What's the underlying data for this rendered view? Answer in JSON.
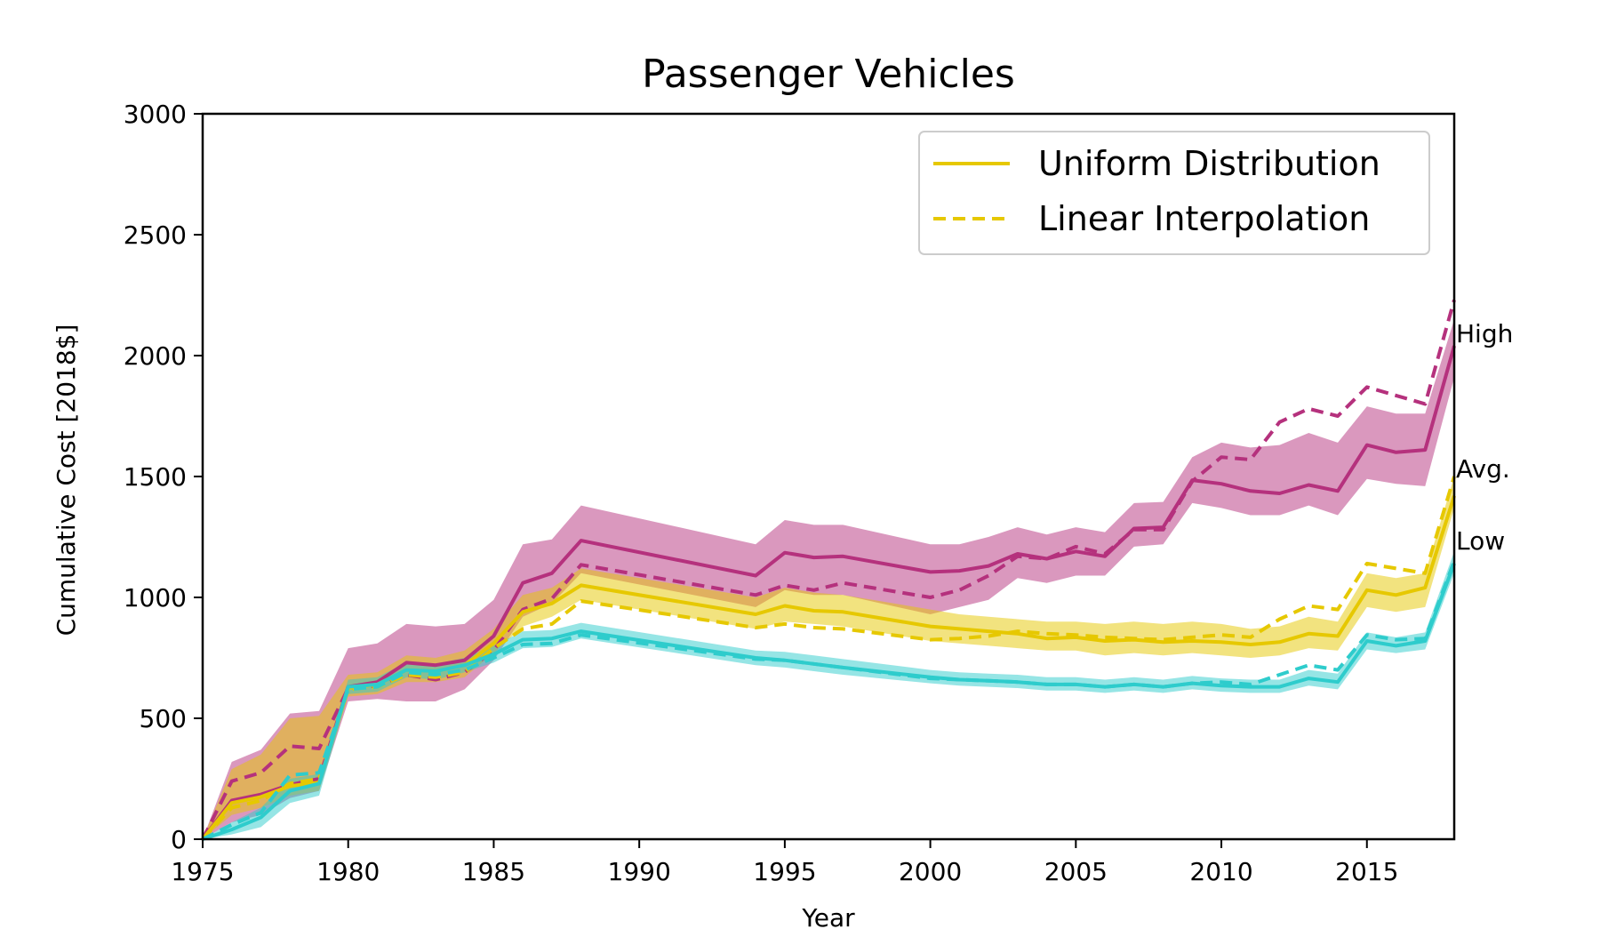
{
  "chart_data": {
    "type": "line",
    "title": "Passenger Vehicles",
    "xlabel": "Year",
    "ylabel": "Cumulative Cost [2018$]",
    "xlim": [
      1975,
      2018
    ],
    "ylim": [
      0,
      3000
    ],
    "xticks": [
      1975,
      1980,
      1985,
      1990,
      1995,
      2000,
      2005,
      2010,
      2015
    ],
    "yticks": [
      0,
      500,
      1000,
      1500,
      2000,
      2500,
      3000
    ],
    "grid": false,
    "legend_position": "top-right",
    "legend": [
      {
        "label": "Uniform Distribution",
        "style": "solid",
        "color": "#e6c800"
      },
      {
        "label": "Linear Interpolation",
        "style": "dashed",
        "color": "#e6c800"
      }
    ],
    "colors": {
      "high": "#b5317d",
      "avg": "#e6c800",
      "low": "#2ecccc"
    },
    "end_labels": {
      "high": "High",
      "avg": "Avg.",
      "low": "Low"
    },
    "series": [
      {
        "group": "high",
        "style": "solid",
        "x": [
          1975,
          1976,
          1977,
          1978,
          1979,
          1980,
          1981,
          1982,
          1983,
          1984,
          1985,
          1986,
          1987,
          1988,
          1994,
          1995,
          1996,
          1997,
          2000,
          2001,
          2002,
          2003,
          2004,
          2005,
          2006,
          2007,
          2008,
          2009,
          2010,
          2011,
          2012,
          2013,
          2014,
          2015,
          2016,
          2017,
          2018
        ],
        "y": [
          0,
          160,
          185,
          225,
          250,
          630,
          650,
          730,
          720,
          740,
          840,
          1060,
          1100,
          1235,
          1090,
          1185,
          1165,
          1170,
          1105,
          1110,
          1130,
          1180,
          1160,
          1190,
          1170,
          1285,
          1290,
          1485,
          1470,
          1440,
          1430,
          1465,
          1440,
          1630,
          1600,
          1610,
          2040
        ]
      },
      {
        "group": "high",
        "style": "dashed",
        "x": [
          1975,
          1976,
          1977,
          1978,
          1979,
          1980,
          1981,
          1982,
          1983,
          1984,
          1985,
          1986,
          1987,
          1988,
          1994,
          1995,
          1996,
          1997,
          2000,
          2001,
          2002,
          2003,
          2004,
          2005,
          2006,
          2007,
          2008,
          2009,
          2010,
          2011,
          2012,
          2013,
          2014,
          2015,
          2016,
          2017,
          2018
        ],
        "y": [
          0,
          240,
          275,
          385,
          375,
          625,
          635,
          680,
          660,
          690,
          780,
          950,
          995,
          1135,
          1010,
          1050,
          1030,
          1060,
          1000,
          1030,
          1090,
          1170,
          1160,
          1210,
          1180,
          1280,
          1280,
          1480,
          1580,
          1570,
          1725,
          1780,
          1750,
          1870,
          1835,
          1800,
          2230
        ]
      },
      {
        "group": "avg",
        "style": "solid",
        "x": [
          1975,
          1976,
          1977,
          1978,
          1979,
          1980,
          1981,
          1982,
          1983,
          1984,
          1985,
          1986,
          1987,
          1988,
          1994,
          1995,
          1996,
          1997,
          2000,
          2001,
          2002,
          2003,
          2004,
          2005,
          2006,
          2007,
          2008,
          2009,
          2010,
          2011,
          2012,
          2013,
          2014,
          2015,
          2016,
          2017,
          2018
        ],
        "y": [
          0,
          150,
          175,
          220,
          235,
          625,
          640,
          700,
          695,
          720,
          810,
          940,
          975,
          1050,
          930,
          965,
          945,
          940,
          880,
          870,
          860,
          850,
          830,
          835,
          820,
          825,
          815,
          820,
          815,
          805,
          815,
          850,
          840,
          1030,
          1010,
          1040,
          1420
        ]
      },
      {
        "group": "avg",
        "style": "dashed",
        "x": [
          1975,
          1976,
          1977,
          1978,
          1979,
          1980,
          1981,
          1982,
          1983,
          1984,
          1985,
          1986,
          1987,
          1988,
          1994,
          1995,
          1996,
          1997,
          2000,
          2001,
          2002,
          2003,
          2004,
          2005,
          2006,
          2007,
          2008,
          2009,
          2010,
          2011,
          2012,
          2013,
          2014,
          2015,
          2016,
          2017,
          2018
        ],
        "y": [
          0,
          130,
          160,
          230,
          250,
          620,
          630,
          680,
          670,
          690,
          790,
          870,
          890,
          985,
          875,
          890,
          875,
          870,
          825,
          830,
          840,
          860,
          850,
          845,
          835,
          830,
          825,
          835,
          845,
          835,
          910,
          965,
          950,
          1140,
          1120,
          1100,
          1500
        ]
      },
      {
        "group": "low",
        "style": "solid",
        "x": [
          1975,
          1976,
          1977,
          1978,
          1979,
          1980,
          1981,
          1982,
          1983,
          1984,
          1985,
          1986,
          1987,
          1988,
          1994,
          1995,
          1996,
          1997,
          2000,
          2001,
          2002,
          2003,
          2004,
          2005,
          2006,
          2007,
          2008,
          2009,
          2010,
          2011,
          2012,
          2013,
          2014,
          2015,
          2016,
          2017,
          2018
        ],
        "y": [
          0,
          40,
          90,
          200,
          230,
          630,
          640,
          700,
          695,
          720,
          765,
          825,
          830,
          860,
          750,
          740,
          725,
          710,
          670,
          660,
          655,
          650,
          640,
          640,
          630,
          640,
          630,
          645,
          635,
          630,
          630,
          665,
          650,
          820,
          800,
          820,
          1140
        ]
      },
      {
        "group": "low",
        "style": "dashed",
        "x": [
          1975,
          1976,
          1977,
          1978,
          1979,
          1980,
          1981,
          1982,
          1983,
          1984,
          1985,
          1986,
          1987,
          1988,
          1994,
          1995,
          1996,
          1997,
          2000,
          2001,
          2002,
          2003,
          2004,
          2005,
          2006,
          2007,
          2008,
          2009,
          2010,
          2011,
          2012,
          2013,
          2014,
          2015,
          2016,
          2017,
          2018
        ],
        "y": [
          0,
          60,
          110,
          265,
          275,
          620,
          630,
          690,
          680,
          700,
          750,
          805,
          810,
          845,
          745,
          740,
          725,
          710,
          665,
          660,
          655,
          650,
          640,
          640,
          630,
          640,
          630,
          645,
          650,
          640,
          680,
          720,
          700,
          845,
          825,
          830,
          1150
        ]
      }
    ],
    "bands": [
      {
        "group": "high",
        "x": [
          1975,
          1976,
          1977,
          1978,
          1979,
          1980,
          1981,
          1982,
          1983,
          1984,
          1985,
          1986,
          1987,
          1988,
          1994,
          1995,
          1996,
          1997,
          2000,
          2001,
          2002,
          2003,
          2004,
          2005,
          2006,
          2007,
          2008,
          2009,
          2010,
          2011,
          2012,
          2013,
          2014,
          2015,
          2016,
          2017,
          2018
        ],
        "lower": [
          0,
          70,
          100,
          170,
          200,
          570,
          580,
          570,
          570,
          620,
          740,
          920,
          975,
          1100,
          960,
          1030,
          1010,
          1010,
          930,
          960,
          990,
          1080,
          1060,
          1090,
          1090,
          1210,
          1220,
          1390,
          1370,
          1340,
          1340,
          1380,
          1340,
          1490,
          1470,
          1460,
          1910
        ],
        "upper": [
          0,
          320,
          370,
          520,
          530,
          790,
          810,
          890,
          880,
          890,
          990,
          1220,
          1240,
          1380,
          1220,
          1320,
          1300,
          1300,
          1220,
          1220,
          1250,
          1290,
          1260,
          1290,
          1270,
          1390,
          1395,
          1580,
          1640,
          1620,
          1630,
          1680,
          1640,
          1790,
          1760,
          1760,
          2150
        ]
      },
      {
        "group": "avg",
        "x": [
          1975,
          1976,
          1977,
          1978,
          1979,
          1980,
          1981,
          1982,
          1983,
          1984,
          1985,
          1986,
          1987,
          1988,
          1994,
          1995,
          1996,
          1997,
          2000,
          2001,
          2002,
          2003,
          2004,
          2005,
          2006,
          2007,
          2008,
          2009,
          2010,
          2011,
          2012,
          2013,
          2014,
          2015,
          2016,
          2017,
          2018
        ],
        "lower": [
          0,
          100,
          130,
          180,
          200,
          590,
          600,
          650,
          650,
          670,
          770,
          880,
          920,
          990,
          870,
          900,
          890,
          880,
          820,
          810,
          800,
          790,
          780,
          780,
          760,
          770,
          760,
          770,
          760,
          750,
          760,
          790,
          780,
          960,
          940,
          960,
          1370
        ],
        "upper": [
          0,
          290,
          350,
          500,
          510,
          680,
          690,
          760,
          750,
          780,
          870,
          1010,
          1040,
          1120,
          1000,
          1040,
          1020,
          1010,
          950,
          930,
          920,
          910,
          900,
          900,
          890,
          900,
          890,
          900,
          890,
          870,
          880,
          920,
          900,
          1100,
          1080,
          1100,
          1500
        ]
      },
      {
        "group": "low",
        "x": [
          1975,
          1976,
          1977,
          1978,
          1979,
          1980,
          1981,
          1982,
          1983,
          1984,
          1985,
          1986,
          1987,
          1988,
          1994,
          1995,
          1996,
          1997,
          2000,
          2001,
          2002,
          2003,
          2004,
          2005,
          2006,
          2007,
          2008,
          2009,
          2010,
          2011,
          2012,
          2013,
          2014,
          2015,
          2016,
          2017,
          2018
        ],
        "lower": [
          0,
          20,
          50,
          150,
          180,
          600,
          610,
          670,
          660,
          690,
          730,
          790,
          795,
          830,
          720,
          710,
          695,
          680,
          645,
          635,
          630,
          625,
          615,
          615,
          605,
          615,
          605,
          620,
          610,
          605,
          605,
          635,
          620,
          785,
          770,
          785,
          1100
        ],
        "upper": [
          0,
          70,
          130,
          250,
          270,
          660,
          670,
          730,
          725,
          750,
          800,
          860,
          865,
          895,
          780,
          775,
          760,
          745,
          700,
          690,
          685,
          680,
          670,
          670,
          660,
          670,
          660,
          675,
          665,
          660,
          660,
          700,
          685,
          855,
          835,
          855,
          1190
        ]
      }
    ]
  }
}
